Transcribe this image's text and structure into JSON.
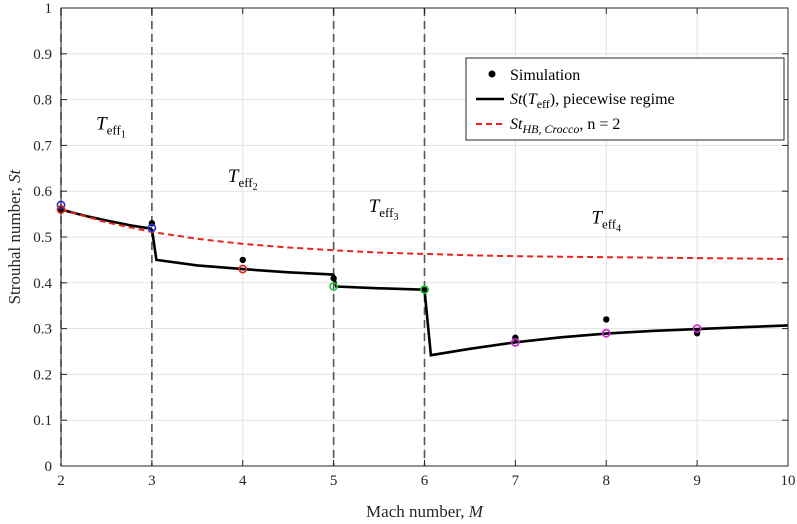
{
  "chart_data": {
    "type": "line",
    "xlabel": "Mach number, ",
    "xlabel_var": "M",
    "ylabel": "Strouhal number, ",
    "ylabel_var": "St",
    "xlim": [
      2,
      10
    ],
    "ylim": [
      0,
      1
    ],
    "xticks": [
      "2",
      "3",
      "4",
      "5",
      "6",
      "7",
      "8",
      "9",
      "10"
    ],
    "yticks": [
      "0",
      "0.1",
      "0.2",
      "0.3",
      "0.4",
      "0.5",
      "0.6",
      "0.7",
      "0.8",
      "0.9",
      "1"
    ],
    "grid": true,
    "legend_position": "top-right",
    "regime_boundaries": [
      2,
      3,
      5,
      6
    ],
    "regime_labels": [
      {
        "base": "T",
        "sub": "eff",
        "subsub": "1",
        "x": 2.55,
        "y": 0.735
      },
      {
        "base": "T",
        "sub": "eff",
        "subsub": "2",
        "x": 4.0,
        "y": 0.62
      },
      {
        "base": "T",
        "sub": "eff",
        "subsub": "3",
        "x": 5.55,
        "y": 0.555
      },
      {
        "base": "T",
        "sub": "eff",
        "subsub": "4",
        "x": 8.0,
        "y": 0.53
      }
    ],
    "series": [
      {
        "name": "Simulation",
        "kind": "markers",
        "color": "#000000",
        "x": [
          2,
          3,
          4,
          5,
          6,
          7,
          8,
          9
        ],
        "y": [
          0.56,
          0.53,
          0.45,
          0.41,
          0.385,
          0.28,
          0.32,
          0.29
        ]
      },
      {
        "name": "St(T_eff), piecewise regime",
        "kind": "solid",
        "color": "#000000",
        "segments": [
          {
            "x": [
              2,
              2.25,
              2.5,
              2.75,
              3.0
            ],
            "y": [
              0.56,
              0.547,
              0.536,
              0.526,
              0.518
            ]
          },
          {
            "x": [
              3.0,
              3.05,
              3.5,
              4.0,
              4.5,
              5.0
            ],
            "y": [
              0.518,
              0.45,
              0.438,
              0.43,
              0.423,
              0.418
            ]
          },
          {
            "x": [
              5.0,
              5.03,
              5.5,
              6.0
            ],
            "y": [
              0.418,
              0.392,
              0.388,
              0.385
            ]
          },
          {
            "x": [
              6.0,
              6.07,
              6.5,
              7.0,
              7.5,
              8.0,
              8.5,
              9.0,
              9.5,
              10.0
            ],
            "y": [
              0.385,
              0.242,
              0.256,
              0.27,
              0.281,
              0.289,
              0.295,
              0.299,
              0.303,
              0.307
            ]
          }
        ]
      },
      {
        "name": "St_HB,Crocco, n = 2",
        "kind": "dashed",
        "color": "#e8231b",
        "x": [
          2,
          2.5,
          3,
          3.5,
          4,
          4.5,
          5,
          5.5,
          6,
          6.5,
          7,
          7.5,
          8,
          8.5,
          9,
          9.5,
          10
        ],
        "y": [
          0.56,
          0.532,
          0.511,
          0.496,
          0.485,
          0.477,
          0.471,
          0.466,
          0.463,
          0.46,
          0.458,
          0.457,
          0.456,
          0.455,
          0.454,
          0.453,
          0.452
        ]
      },
      {
        "name": "model-points-blue",
        "kind": "open-markers",
        "color": "#1f2fd6",
        "x": [
          2,
          3
        ],
        "y": [
          0.57,
          0.52
        ]
      },
      {
        "name": "model-points-red",
        "kind": "open-markers",
        "color": "#e8231b",
        "x": [
          2,
          4
        ],
        "y": [
          0.56,
          0.43
        ]
      },
      {
        "name": "model-points-green",
        "kind": "open-markers",
        "color": "#22c33a",
        "x": [
          5,
          6
        ],
        "y": [
          0.392,
          0.385
        ]
      },
      {
        "name": "model-points-magenta",
        "kind": "open-markers",
        "color": "#d020d0",
        "x": [
          7,
          8,
          9
        ],
        "y": [
          0.27,
          0.29,
          0.3
        ]
      }
    ],
    "legend": {
      "entries": [
        {
          "kind": "marker",
          "label": "Simulation"
        },
        {
          "kind": "solid",
          "label_var": "St",
          "label_arg": "T",
          "label_arg_sub": "eff",
          "label_rest": ", piecewise regime"
        },
        {
          "kind": "dashed",
          "label_var": "St",
          "label_sub": "HB, Crocco",
          "label_rest": ", n = 2"
        }
      ]
    }
  }
}
